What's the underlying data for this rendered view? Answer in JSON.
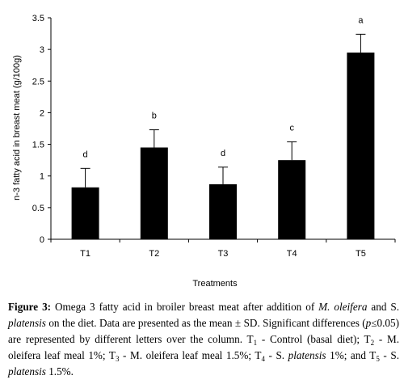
{
  "chart_data": {
    "type": "bar",
    "categories": [
      "T1",
      "T2",
      "T3",
      "T4",
      "T5"
    ],
    "values": [
      0.82,
      1.45,
      0.87,
      1.25,
      2.95
    ],
    "errors": [
      0.3,
      0.28,
      0.27,
      0.29,
      0.29
    ],
    "letters": [
      "d",
      "b",
      "d",
      "c",
      "a"
    ],
    "ylabel": "n-3 fatty acid in breast meat  (g/100g)",
    "xlabel": "Treatments",
    "ylim": [
      0,
      3.5
    ],
    "yticks": [
      "0",
      "0.5",
      "1",
      "1.5",
      "2",
      "2.5",
      "3",
      "3.5"
    ],
    "bar_color": "#000000"
  },
  "caption": {
    "label": "Figure 3:",
    "p1": " Omega 3 fatty acid in broiler breast meat after addition of ",
    "p2": "M. oleifera",
    "p3": " and S. ",
    "p4": "platensis",
    "p5": " on the diet. Data are presented as the mean ± SD. Significant differences (",
    "p6": "p",
    "p7": "≤",
    "p8": "0.05) are represented by different letters over the column. T",
    "s1": "1",
    "p9": " - Control (basal diet); T",
    "s2": "2",
    "p10": " - M. oleifera leaf meal 1%; T",
    "s3": "3",
    "p11": " - M. oleifera leaf meal 1.5%; T",
    "s4": "4",
    "p12": " - S. ",
    "p13": "platensis",
    "p14": " 1%; and T",
    "s5": "5",
    "p15": " - S. ",
    "p16": "platensis",
    "p17": " 1.5%."
  }
}
